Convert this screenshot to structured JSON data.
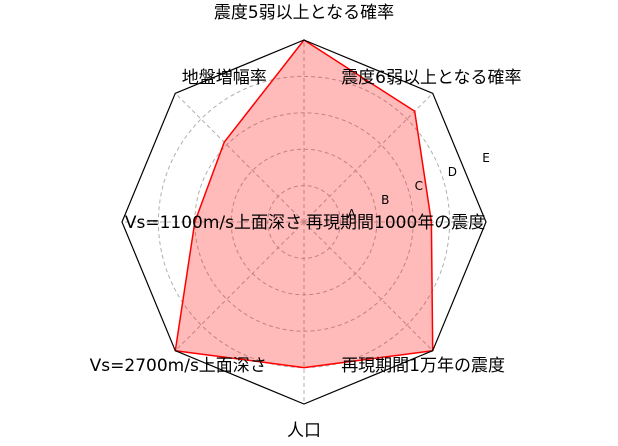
{
  "chart_data": {
    "type": "radar",
    "axes": [
      "震度5弱以上となる確率",
      "震度6弱以上となる確率",
      "再現期間1000年の震度",
      "再現期間1万年の震度",
      "人口",
      "Vs=2700m/s上面深さ",
      "Vs=1100m/s上面深さ",
      "地盤増幅率"
    ],
    "levels": [
      "A",
      "B",
      "C",
      "D",
      "E"
    ],
    "range": [
      0,
      5
    ],
    "grid": true,
    "series": [
      {
        "values": [
          5,
          4.3,
          3.5,
          5,
          4,
          5,
          3,
          3.1
        ],
        "color": "#ff0000"
      }
    ]
  }
}
